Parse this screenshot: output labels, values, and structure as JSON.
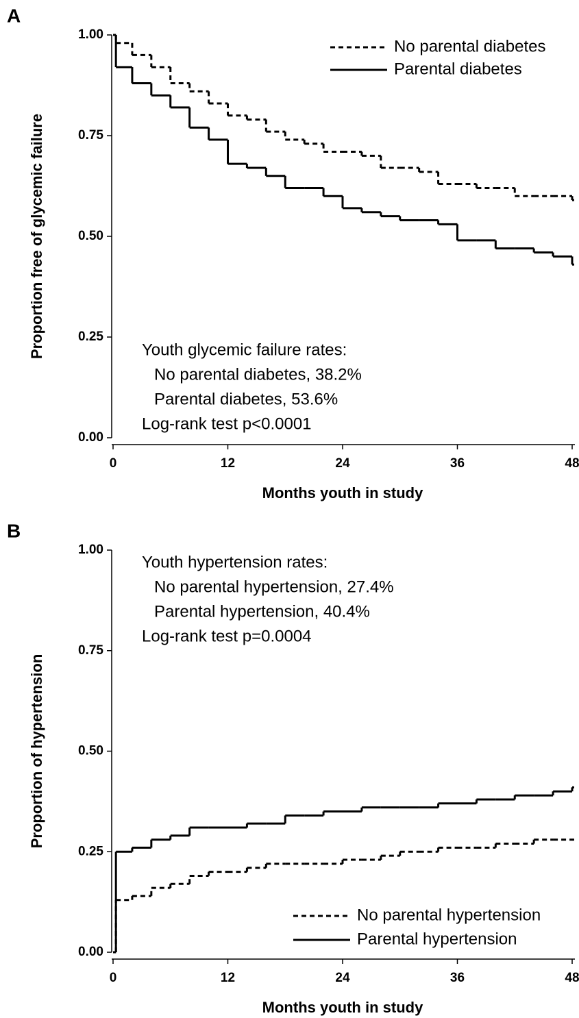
{
  "chart_data": [
    {
      "type": "step",
      "panel_label": "A",
      "x_label": "Months youth in study",
      "y_label": "Proportion free of glycemic failure",
      "annotation": [
        "Youth glycemic failure rates:",
        "No parental diabetes, 38.2%",
        "Parental diabetes, 53.6%",
        "Log-rank test p<0.0001"
      ],
      "legend": "upper right",
      "x": [
        0,
        0.3,
        2,
        4,
        6,
        8,
        10,
        12,
        14,
        16,
        18,
        20,
        22,
        24,
        26,
        28,
        30,
        32,
        34,
        36,
        38,
        40,
        42,
        44,
        46,
        48
      ],
      "series": [
        {
          "name": "No parental diabetes",
          "color": "#000000",
          "style": "dashed",
          "values": [
            1.0,
            0.98,
            0.95,
            0.92,
            0.88,
            0.86,
            0.83,
            0.8,
            0.79,
            0.76,
            0.74,
            0.73,
            0.71,
            0.71,
            0.7,
            0.67,
            0.67,
            0.66,
            0.63,
            0.63,
            0.62,
            0.62,
            0.6,
            0.6,
            0.6,
            0.59
          ]
        },
        {
          "name": "Parental diabetes",
          "color": "#000000",
          "style": "solid",
          "values": [
            1.0,
            0.92,
            0.88,
            0.85,
            0.82,
            0.77,
            0.74,
            0.68,
            0.67,
            0.65,
            0.62,
            0.62,
            0.6,
            0.57,
            0.56,
            0.55,
            0.54,
            0.54,
            0.53,
            0.49,
            0.49,
            0.47,
            0.47,
            0.46,
            0.45,
            0.43
          ]
        }
      ],
      "xlim": [
        0,
        48
      ],
      "xticks": [
        0,
        12,
        24,
        36,
        48
      ],
      "ylim": [
        0,
        1
      ],
      "yticks": [
        {
          "value": 0,
          "label": "0.00"
        },
        {
          "value": 0.25,
          "label": "0.25"
        },
        {
          "value": 0.5,
          "label": "0.50"
        },
        {
          "value": 0.75,
          "label": "0.75"
        },
        {
          "value": 1,
          "label": "1.00"
        }
      ]
    },
    {
      "type": "step",
      "panel_label": "B",
      "x_label": "Months youth in study",
      "y_label": "Proportion of hypertension",
      "annotation": [
        "Youth hypertension rates:",
        "No parental hypertension, 27.4%",
        "Parental hypertension, 40.4%",
        "Log-rank test p=0.0004"
      ],
      "legend": "lower right",
      "x": [
        0,
        0.3,
        2,
        4,
        6,
        8,
        10,
        12,
        14,
        16,
        18,
        20,
        22,
        24,
        26,
        28,
        30,
        32,
        34,
        36,
        38,
        40,
        42,
        44,
        46,
        48
      ],
      "series": [
        {
          "name": "No parental hypertension",
          "color": "#000000",
          "style": "dashed",
          "values": [
            0,
            0.13,
            0.14,
            0.16,
            0.17,
            0.19,
            0.2,
            0.2,
            0.21,
            0.22,
            0.22,
            0.22,
            0.22,
            0.23,
            0.23,
            0.24,
            0.25,
            0.25,
            0.26,
            0.26,
            0.26,
            0.27,
            0.27,
            0.28,
            0.28,
            0.28
          ]
        },
        {
          "name": "Parental hypertension",
          "color": "#000000",
          "style": "solid",
          "values": [
            0,
            0.25,
            0.26,
            0.28,
            0.29,
            0.31,
            0.31,
            0.31,
            0.32,
            0.32,
            0.34,
            0.34,
            0.35,
            0.35,
            0.36,
            0.36,
            0.36,
            0.36,
            0.37,
            0.37,
            0.38,
            0.38,
            0.39,
            0.39,
            0.4,
            0.41
          ]
        }
      ],
      "xlim": [
        0,
        48
      ],
      "xticks": [
        0,
        12,
        24,
        36,
        48
      ],
      "ylim": [
        0,
        1
      ],
      "yticks": [
        {
          "value": 0,
          "label": "0.00"
        },
        {
          "value": 0.25,
          "label": "0.25"
        },
        {
          "value": 0.5,
          "label": "0.50"
        },
        {
          "value": 0.75,
          "label": "0.75"
        },
        {
          "value": 1,
          "label": "1.00"
        }
      ]
    }
  ]
}
